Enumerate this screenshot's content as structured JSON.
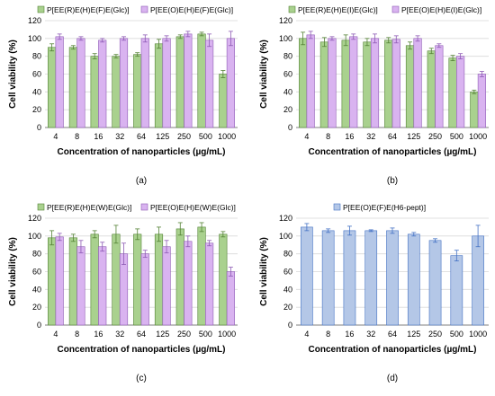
{
  "colors": {
    "green_fill": "#a9d18e",
    "green_stroke": "#548235",
    "purple_fill": "#d9b3f0",
    "purple_stroke": "#8e5bb5",
    "blue_fill": "#b4c7e7",
    "blue_stroke": "#4472c4",
    "grid": "#d9d9d9",
    "axis": "#7f7f7f",
    "text": "#000000"
  },
  "chart_data": [
    {
      "type": "bar",
      "panel_label": "(a)",
      "xlabel": "Concentration of nanoparticles (µg/mL)",
      "ylabel": "Cell viability (%)",
      "ylim": [
        0,
        120
      ],
      "yticks": [
        "0",
        "20",
        "40",
        "60",
        "80",
        "100",
        "120"
      ],
      "grid": true,
      "legend_position": "top",
      "categories": [
        "4",
        "8",
        "16",
        "32",
        "64",
        "125",
        "250",
        "500",
        "1000"
      ],
      "series": [
        {
          "name": "P[EE(R)E(H)E(F)E(Glc)]",
          "color": "green",
          "values": [
            90,
            90,
            80,
            80,
            82,
            94,
            102,
            105,
            60
          ],
          "errors": [
            4,
            2,
            3,
            2,
            2,
            5,
            2,
            2,
            4
          ]
        },
        {
          "name": "P[EE(O)E(H)E(F)E(Glc)]",
          "color": "purple",
          "values": [
            102,
            100,
            98,
            100,
            100,
            100,
            105,
            98,
            100
          ],
          "errors": [
            3,
            2,
            2,
            2,
            4,
            3,
            3,
            7,
            8
          ]
        }
      ]
    },
    {
      "type": "bar",
      "panel_label": "(b)",
      "xlabel": "Concentration of nanoparticles (µg/mL)",
      "ylabel": "Cell viability (%)",
      "ylim": [
        0,
        120
      ],
      "yticks": [
        "0",
        "20",
        "40",
        "60",
        "80",
        "100",
        "120"
      ],
      "grid": true,
      "legend_position": "top",
      "categories": [
        "4",
        "8",
        "16",
        "32",
        "64",
        "125",
        "250",
        "500",
        "1000"
      ],
      "series": [
        {
          "name": "P[EE(R)E(H)E(I)E(Glc)]",
          "color": "green",
          "values": [
            100,
            96,
            98,
            96,
            98,
            92,
            86,
            78,
            40
          ],
          "errors": [
            7,
            5,
            6,
            4,
            3,
            4,
            3,
            3,
            2
          ]
        },
        {
          "name": "P[EE(O)E(H)E(I)E(Glc)]",
          "color": "purple",
          "values": [
            104,
            100,
            102,
            100,
            99,
            100,
            92,
            80,
            60
          ],
          "errors": [
            4,
            2,
            3,
            5,
            4,
            3,
            2,
            3,
            3
          ]
        }
      ]
    },
    {
      "type": "bar",
      "panel_label": "(c)",
      "xlabel": "Concentration of nanoparticles (µg/mL)",
      "ylabel": "Cell viability (%)",
      "ylim": [
        0,
        120
      ],
      "yticks": [
        "0",
        "20",
        "40",
        "60",
        "80",
        "100",
        "120"
      ],
      "grid": true,
      "legend_position": "top",
      "categories": [
        "4",
        "8",
        "16",
        "32",
        "64",
        "125",
        "250",
        "500",
        "1000"
      ],
      "series": [
        {
          "name": "P[EE(R)E(H)E(W)E(Glc)]",
          "color": "green",
          "values": [
            98,
            98,
            102,
            102,
            102,
            102,
            108,
            110,
            102
          ],
          "errors": [
            8,
            4,
            4,
            10,
            6,
            8,
            7,
            5,
            3
          ]
        },
        {
          "name": "P[EE(O)E(H)E(W)E(Glc)]",
          "color": "purple",
          "values": [
            99,
            88,
            88,
            80,
            80,
            88,
            94,
            92,
            60
          ],
          "errors": [
            4,
            7,
            5,
            12,
            4,
            7,
            6,
            3,
            5
          ]
        }
      ]
    },
    {
      "type": "bar",
      "panel_label": "(d)",
      "xlabel": "Concentration of nanoparticles (µg/mL)",
      "ylabel": "Cell viability (%)",
      "ylim": [
        0,
        120
      ],
      "yticks": [
        "0",
        "20",
        "40",
        "60",
        "80",
        "100",
        "120"
      ],
      "grid": true,
      "legend_position": "top",
      "categories": [
        "4",
        "8",
        "16",
        "32",
        "64",
        "125",
        "250",
        "500",
        "1000"
      ],
      "series": [
        {
          "name": "P[EE(O)E(F)E(H6-pept)]",
          "color": "blue",
          "values": [
            110,
            106,
            106,
            106,
            106,
            102,
            95,
            78,
            100
          ],
          "errors": [
            4,
            2,
            5,
            1,
            3,
            2,
            2,
            6,
            12
          ]
        }
      ]
    }
  ]
}
